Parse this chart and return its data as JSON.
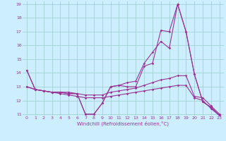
{
  "xlabel": "Windchill (Refroidissement éolien,°C)",
  "xlim": [
    -0.5,
    23.5
  ],
  "ylim": [
    10.9,
    19.2
  ],
  "yticks": [
    11,
    12,
    13,
    14,
    15,
    16,
    17,
    18,
    19
  ],
  "xticks": [
    0,
    1,
    2,
    3,
    4,
    5,
    6,
    7,
    8,
    9,
    10,
    11,
    12,
    13,
    14,
    15,
    16,
    17,
    18,
    19,
    20,
    21,
    22,
    23
  ],
  "background_color": "#cceeff",
  "grid_color": "#99cccc",
  "line_color": "#993399",
  "lines": [
    [
      14.2,
      12.8,
      12.7,
      12.6,
      12.6,
      12.6,
      12.5,
      11.0,
      11.0,
      11.8,
      13.0,
      13.1,
      13.0,
      13.0,
      14.5,
      14.7,
      17.1,
      17.0,
      19.0,
      17.0,
      13.9,
      11.9,
      11.5,
      10.9
    ],
    [
      14.2,
      12.8,
      12.7,
      12.6,
      12.6,
      12.5,
      12.5,
      11.0,
      11.0,
      11.8,
      13.0,
      13.1,
      13.3,
      13.4,
      14.7,
      15.5,
      16.3,
      15.8,
      19.0,
      17.0,
      13.9,
      11.9,
      11.5,
      10.9
    ],
    [
      13.0,
      12.8,
      12.7,
      12.6,
      12.6,
      12.5,
      12.5,
      12.4,
      12.4,
      12.4,
      12.6,
      12.7,
      12.8,
      12.9,
      13.1,
      13.3,
      13.5,
      13.6,
      13.8,
      13.8,
      12.3,
      12.2,
      11.6,
      11.0
    ],
    [
      13.0,
      12.8,
      12.7,
      12.6,
      12.5,
      12.4,
      12.3,
      12.2,
      12.2,
      12.2,
      12.3,
      12.4,
      12.5,
      12.6,
      12.7,
      12.8,
      12.9,
      13.0,
      13.1,
      13.1,
      12.2,
      12.0,
      11.4,
      10.9
    ]
  ]
}
